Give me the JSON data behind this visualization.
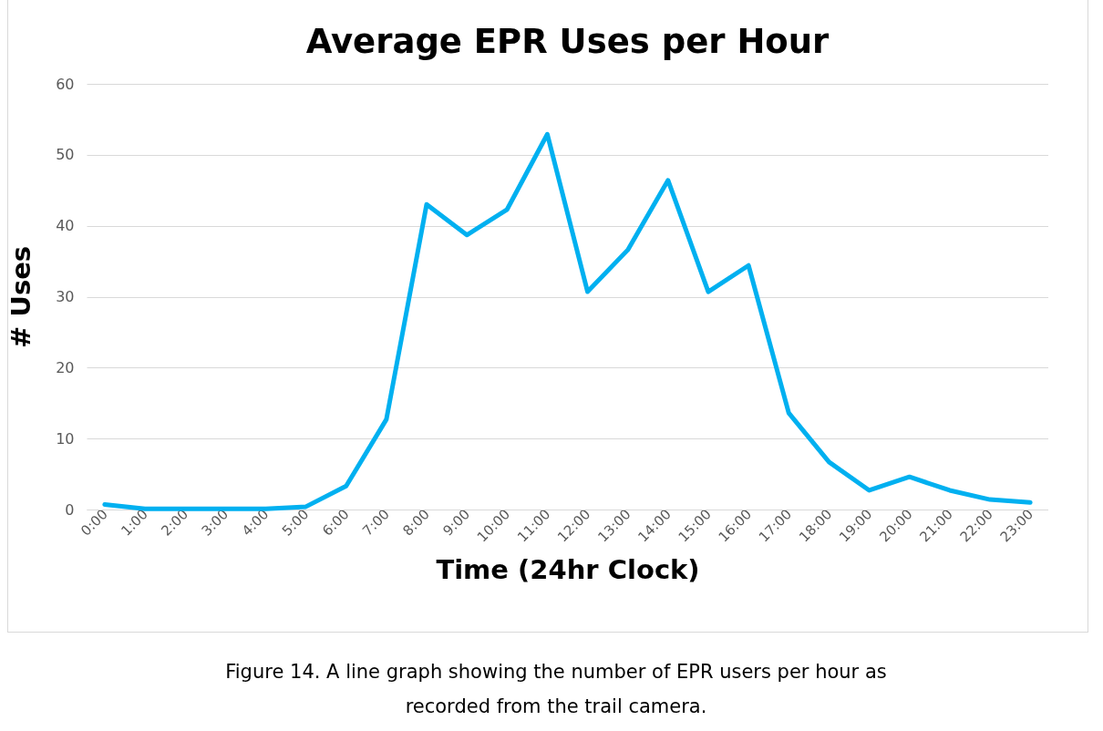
{
  "chart_data": {
    "type": "line",
    "title": "Average EPR Uses per Hour",
    "xlabel": "Time (24hr Clock)",
    "ylabel": "# Uses",
    "categories": [
      "0:00",
      "1:00",
      "2:00",
      "3:00",
      "4:00",
      "5:00",
      "6:00",
      "7:00",
      "8:00",
      "9:00",
      "10:00",
      "11:00",
      "12:00",
      "13:00",
      "14:00",
      "15:00",
      "16:00",
      "17:00",
      "18:00",
      "19:00",
      "20:00",
      "21:00",
      "22:00",
      "23:00"
    ],
    "series": [
      {
        "color": "#00b0f0",
        "values": [
          0.7,
          0.1,
          0.1,
          0.1,
          0.1,
          0.4,
          3.3,
          12.7,
          43.0,
          38.7,
          42.3,
          52.9,
          30.7,
          36.6,
          46.4,
          30.7,
          34.4,
          13.6,
          6.7,
          2.7,
          4.6,
          2.7,
          1.4,
          1.0
        ]
      }
    ],
    "ylim": [
      0,
      60
    ],
    "yticks": [
      0,
      10,
      20,
      30,
      40,
      50,
      60
    ],
    "grid": "y",
    "marker": "none",
    "line_style": "solid",
    "annotations": [
      "Figure 14. A line graph showing the number of EPR users per hour as recorded from the trail camera."
    ]
  }
}
